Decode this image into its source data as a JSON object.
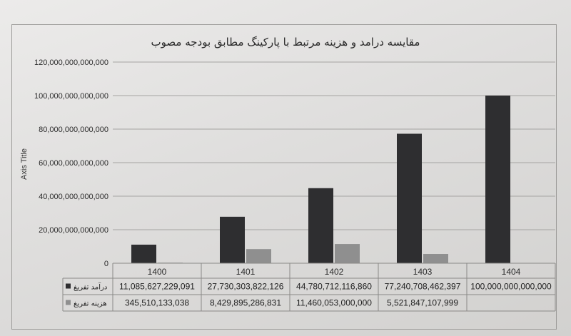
{
  "chart_data": {
    "type": "bar",
    "title": "مقایسه درامد و هزینه مرتبط با پارکینگ مطابق بودجه مصوب",
    "xlabel": "",
    "ylabel": "Axis Title",
    "ylim": [
      0,
      120000000000000
    ],
    "yticks": [
      0,
      20000000000000,
      40000000000000,
      60000000000000,
      80000000000000,
      100000000000000,
      120000000000000
    ],
    "ytick_labels": [
      "0",
      "20,000,000,000,000",
      "40,000,000,000,000",
      "60,000,000,000,000",
      "80,000,000,000,000",
      "100,000,000,000,000",
      "120,000,000,000,000"
    ],
    "grid": true,
    "legend": "data-table",
    "categories": [
      "1400",
      "1401",
      "1402",
      "1403",
      "1404"
    ],
    "series": [
      {
        "name": "درآمد تفریغ",
        "color": "#2e2e30",
        "values": [
          11085627229091,
          27730303822126,
          44780712116860,
          77240708462397,
          100000000000000
        ],
        "value_labels": [
          "11,085,627,229,091",
          "27,730,303,822,126",
          "44,780,712,116,860",
          "77,240,708,462,397",
          "100,000,000,000,000"
        ]
      },
      {
        "name": "هزینه تفریغ",
        "color": "#8f8f8f",
        "values": [
          345510133038,
          8429895286831,
          11460053000000,
          5521847107999,
          null
        ],
        "value_labels": [
          "345,510,133,038",
          "8,429,895,286,831",
          "11,460,053,000,000",
          "5,521,847,107,999",
          ""
        ]
      }
    ]
  }
}
